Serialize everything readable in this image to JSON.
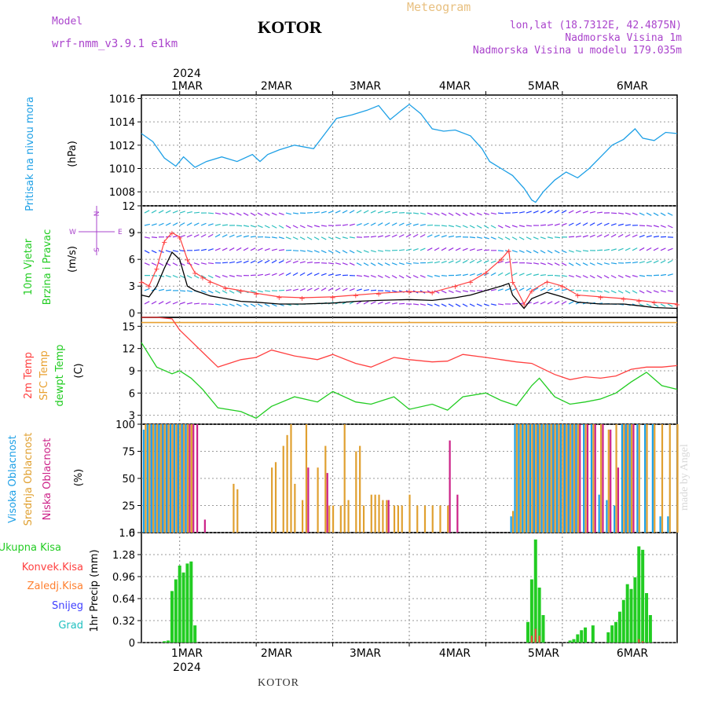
{
  "header": {
    "model_label": "Model",
    "model_name": "wrf-nmm_v3.9.1  e1km",
    "station": "KOTOR",
    "product": "Meteogram",
    "lonlat": "lon,lat (18.7312E, 42.4875N)",
    "elevation": "Nadmorska Visina 1m",
    "model_elevation": "Nadmorska Visina u modelu 179.035m"
  },
  "footer": {
    "station": "KOTOR",
    "credit": "made by Angel"
  },
  "colors": {
    "pressure": "#1ea0e6",
    "wind_speed": "#000000",
    "wind_gust": "#ff4040",
    "temp2m": "#ff4040",
    "sfc_temp": "#e8a030",
    "dewpoint": "#22cc22",
    "cloud_high": "#1ea0e6",
    "cloud_mid": "#e0a030",
    "cloud_low": "#cc2288",
    "precip_total": "#22cc22",
    "precip_conv": "#ff4040",
    "precip_frozen": "#ff8030",
    "snow": "#4040ff",
    "graupel": "#20c0c0",
    "model_text": "#aa44cc"
  },
  "chart_data": [
    {
      "type": "line",
      "id": "pressure",
      "ylabel_left": "Pritisak na nivou mora",
      "unit": "(hPa)",
      "ylim": [
        1006.8,
        1016.3
      ],
      "yticks": [
        "1008",
        "1010",
        "1012",
        "1014",
        "1016"
      ],
      "x": [
        -0.5,
        -0.35,
        -0.2,
        -0.05,
        0.05,
        0.2,
        0.35,
        0.55,
        0.75,
        0.95,
        1.05,
        1.15,
        1.3,
        1.5,
        1.75,
        1.9,
        2.05,
        2.25,
        2.45,
        2.6,
        2.75,
        2.9,
        3.0,
        3.15,
        3.3,
        3.45,
        3.6,
        3.8,
        3.95,
        4.05,
        4.2,
        4.35,
        4.5,
        4.6,
        4.65,
        4.75,
        4.9,
        5.05,
        5.2,
        5.35,
        5.5,
        5.65,
        5.8,
        5.95,
        6.05,
        6.2,
        6.35,
        6.5
      ],
      "series": [
        {
          "values": [
            1013.0,
            1012.3,
            1010.9,
            1010.2,
            1011.0,
            1010.1,
            1010.6,
            1011.0,
            1010.6,
            1011.2,
            1010.6,
            1011.2,
            1011.6,
            1012.0,
            1011.7,
            1013.0,
            1014.3,
            1014.6,
            1015.0,
            1015.4,
            1014.2,
            1015.0,
            1015.5,
            1014.7,
            1013.4,
            1013.2,
            1013.3,
            1012.8,
            1011.7,
            1010.6,
            1010.0,
            1009.4,
            1008.3,
            1007.3,
            1007.1,
            1008.0,
            1009.0,
            1009.7,
            1009.2,
            1010.0,
            1011.0,
            1012.0,
            1012.5,
            1013.4,
            1012.6,
            1012.4,
            1013.1,
            1013.0
          ]
        }
      ]
    },
    {
      "type": "line",
      "id": "wind",
      "ylabel_left": "10m Vjetar",
      "ylabel_left2": "Brzina i Pravac",
      "unit": "(m/s)",
      "ylim": [
        -0.5,
        12
      ],
      "yticks": [
        "0",
        "3",
        "6",
        "9",
        "12"
      ],
      "compass": {
        "n": "N",
        "w": "W",
        "e": "E",
        "s": "S"
      },
      "x": [
        -0.5,
        -0.4,
        -0.3,
        -0.2,
        -0.1,
        0.0,
        0.1,
        0.2,
        0.3,
        0.4,
        0.6,
        0.8,
        1.0,
        1.3,
        1.6,
        2.0,
        2.3,
        2.6,
        3.0,
        3.3,
        3.6,
        3.8,
        4.0,
        4.2,
        4.3,
        4.35,
        4.5,
        4.6,
        4.8,
        5.0,
        5.2,
        5.5,
        5.8,
        6.0,
        6.2,
        6.5
      ],
      "series": [
        {
          "name": "speed",
          "values": [
            2.0,
            1.8,
            3.0,
            5.0,
            6.8,
            6.0,
            3.0,
            2.5,
            2.2,
            1.9,
            1.6,
            1.3,
            1.2,
            1.0,
            1.0,
            1.1,
            1.3,
            1.4,
            1.5,
            1.4,
            1.7,
            2.0,
            2.5,
            3.0,
            3.3,
            2.0,
            0.5,
            1.6,
            2.3,
            1.8,
            1.2,
            1.0,
            1.0,
            0.8,
            0.6,
            0.5
          ]
        },
        {
          "name": "gust",
          "values": [
            3.5,
            3.0,
            5.0,
            8.0,
            9.0,
            8.5,
            6.0,
            4.5,
            4.0,
            3.5,
            2.8,
            2.5,
            2.2,
            1.8,
            1.7,
            1.8,
            2.0,
            2.2,
            2.4,
            2.3,
            3.0,
            3.5,
            4.5,
            6.0,
            7.0,
            3.5,
            1.0,
            2.5,
            3.5,
            3.0,
            2.0,
            1.8,
            1.6,
            1.4,
            1.2,
            1.0
          ]
        }
      ]
    },
    {
      "type": "line",
      "id": "temperature",
      "ylabel_left": "2m Temp",
      "ylabel_left2": "SFC Temp",
      "ylabel_left3": "dewpt Temp",
      "unit": "(C)",
      "ylim": [
        1.8,
        16.2
      ],
      "yticks": [
        "3",
        "6",
        "9",
        "12",
        "15"
      ],
      "x": [
        -0.5,
        -0.3,
        -0.1,
        0.0,
        0.15,
        0.3,
        0.5,
        0.8,
        1.0,
        1.2,
        1.5,
        1.8,
        2.0,
        2.3,
        2.5,
        2.8,
        3.0,
        3.3,
        3.5,
        3.7,
        4.0,
        4.2,
        4.4,
        4.6,
        4.7,
        4.9,
        5.1,
        5.3,
        5.5,
        5.7,
        5.9,
        6.1,
        6.3,
        6.5
      ],
      "series": [
        {
          "name": "temp2m",
          "values": [
            16.2,
            16.2,
            16.0,
            14.5,
            13.0,
            11.5,
            9.5,
            10.5,
            10.8,
            11.8,
            11.0,
            10.5,
            11.2,
            10.0,
            9.5,
            10.8,
            10.5,
            10.2,
            10.3,
            11.2,
            10.8,
            10.5,
            10.2,
            10.0,
            9.5,
            8.5,
            7.8,
            8.2,
            8.0,
            8.3,
            9.2,
            9.5,
            9.5,
            9.7
          ]
        },
        {
          "name": "sfc_temp",
          "values": [
            15.5,
            15.5,
            15.5,
            15.5,
            15.5,
            15.5,
            15.5,
            15.5,
            15.5,
            15.5,
            15.5,
            15.5,
            15.5,
            15.5,
            15.5,
            15.5,
            15.5,
            15.5,
            15.5,
            15.5,
            15.5,
            15.5,
            15.5,
            15.5,
            15.5,
            15.5,
            15.5,
            15.5,
            15.5,
            15.5,
            15.5,
            15.5,
            15.5,
            15.5
          ]
        },
        {
          "name": "dewpoint",
          "values": [
            12.8,
            9.5,
            8.6,
            9.0,
            8.0,
            6.5,
            4.0,
            3.5,
            2.6,
            4.2,
            5.5,
            4.8,
            6.2,
            4.8,
            4.5,
            5.5,
            3.8,
            4.5,
            3.7,
            5.5,
            6.0,
            5.0,
            4.3,
            7.0,
            8.0,
            5.5,
            4.5,
            4.8,
            5.2,
            6.0,
            7.5,
            8.8,
            7.0,
            6.5
          ]
        }
      ]
    },
    {
      "type": "bar",
      "id": "clouds",
      "ylabel_left": "Visoka Oblacnost",
      "ylabel_left2": "Srednja Oblacnost",
      "ylabel_left3": "Niska Oblacnost",
      "unit": "(%)",
      "ylim": [
        0,
        100
      ],
      "yticks": [
        "0",
        "25",
        "50",
        "75",
        "100"
      ],
      "x": [
        -0.45,
        -0.4,
        -0.35,
        -0.3,
        -0.25,
        -0.2,
        -0.15,
        -0.1,
        -0.05,
        0.0,
        0.05,
        0.1,
        0.15,
        0.2,
        0.3,
        0.7,
        0.75,
        0.8,
        0.85,
        0.9,
        1.2,
        1.25,
        1.3,
        1.35,
        1.4,
        1.45,
        1.5,
        1.6,
        1.65,
        1.7,
        1.8,
        1.9,
        1.95,
        2.0,
        2.1,
        2.15,
        2.2,
        2.3,
        2.35,
        2.4,
        2.5,
        2.55,
        2.6,
        2.65,
        2.7,
        2.8,
        2.85,
        2.9,
        3.0,
        3.1,
        3.2,
        3.3,
        3.4,
        3.5,
        3.6,
        3.8,
        4.2,
        4.3,
        4.35,
        4.4,
        4.45,
        4.5,
        4.55,
        4.6,
        4.65,
        4.7,
        4.75,
        4.8,
        4.85,
        4.9,
        4.95,
        5.0,
        5.05,
        5.1,
        5.15,
        5.2,
        5.3,
        5.4,
        5.5,
        5.6,
        5.7,
        5.8,
        5.85,
        5.9,
        6.0,
        6.1,
        6.2,
        6.3,
        6.4,
        6.5
      ],
      "series": [
        {
          "name": "high",
          "values": [
            95,
            100,
            100,
            100,
            100,
            100,
            100,
            100,
            100,
            100,
            100,
            100,
            0,
            0,
            0,
            0,
            0,
            0,
            0,
            0,
            0,
            0,
            0,
            0,
            0,
            0,
            0,
            0,
            0,
            0,
            0,
            0,
            0,
            0,
            0,
            0,
            0,
            0,
            0,
            0,
            0,
            0,
            0,
            0,
            0,
            0,
            0,
            0,
            0,
            0,
            0,
            0,
            0,
            0,
            0,
            0,
            0,
            0,
            15,
            100,
            100,
            100,
            100,
            100,
            100,
            100,
            100,
            100,
            100,
            100,
            100,
            100,
            100,
            100,
            100,
            100,
            100,
            100,
            35,
            30,
            25,
            100,
            100,
            100,
            100,
            100,
            100,
            15,
            15,
            0
          ]
        },
        {
          "name": "mid",
          "values": [
            100,
            100,
            100,
            100,
            100,
            100,
            100,
            100,
            100,
            100,
            100,
            100,
            100,
            0,
            0,
            45,
            40,
            0,
            0,
            0,
            60,
            65,
            0,
            80,
            90,
            100,
            45,
            30,
            100,
            0,
            60,
            80,
            25,
            25,
            25,
            100,
            30,
            75,
            80,
            25,
            35,
            35,
            35,
            30,
            30,
            25,
            25,
            25,
            35,
            25,
            25,
            25,
            25,
            25,
            0,
            0,
            0,
            0,
            20,
            100,
            100,
            100,
            100,
            100,
            100,
            100,
            100,
            100,
            100,
            100,
            100,
            100,
            100,
            100,
            100,
            100,
            100,
            100,
            100,
            95,
            100,
            100,
            100,
            100,
            100,
            100,
            100,
            100,
            100,
            100
          ]
        },
        {
          "name": "low",
          "values": [
            0,
            100,
            100,
            100,
            100,
            100,
            100,
            100,
            100,
            100,
            100,
            100,
            100,
            100,
            12,
            0,
            0,
            0,
            0,
            0,
            0,
            0,
            0,
            0,
            0,
            0,
            0,
            0,
            60,
            0,
            0,
            55,
            0,
            0,
            0,
            0,
            0,
            0,
            0,
            0,
            0,
            0,
            0,
            0,
            30,
            0,
            0,
            0,
            0,
            0,
            0,
            0,
            0,
            85,
            35,
            0,
            0,
            0,
            0,
            0,
            0,
            0,
            100,
            100,
            100,
            100,
            100,
            100,
            100,
            100,
            100,
            100,
            100,
            100,
            100,
            100,
            100,
            100,
            100,
            95,
            60,
            100,
            100,
            100,
            0,
            0,
            0,
            0,
            0,
            0
          ]
        }
      ]
    },
    {
      "type": "bar",
      "id": "precip",
      "legend": [
        "Ukupna Kisa",
        "Konvek.Kisa",
        "Zaledj.Kisa",
        "Snijeg",
        "Grad"
      ],
      "unit": "1hr Precip (mm)",
      "ylim": [
        0,
        1.6
      ],
      "yticks": [
        "0",
        "0.32",
        "0.64",
        "0.96",
        "1.28",
        "1.6"
      ],
      "x": [
        -0.2,
        -0.15,
        -0.1,
        -0.05,
        0.0,
        0.05,
        0.1,
        0.15,
        0.2,
        4.55,
        4.6,
        4.65,
        4.7,
        4.75,
        5.1,
        5.15,
        5.2,
        5.25,
        5.3,
        5.4,
        5.6,
        5.65,
        5.7,
        5.75,
        5.8,
        5.85,
        5.9,
        5.95,
        6.0,
        6.05,
        6.1,
        6.15
      ],
      "series": [
        {
          "name": "total",
          "values": [
            0.02,
            0.03,
            0.75,
            0.92,
            1.12,
            1.02,
            1.15,
            1.18,
            0.25,
            0.3,
            0.92,
            1.5,
            0.8,
            0.4,
            0.03,
            0.05,
            0.12,
            0.18,
            0.22,
            0.25,
            0.15,
            0.25,
            0.3,
            0.45,
            0.62,
            0.85,
            0.78,
            0.95,
            1.4,
            1.35,
            0.72,
            0.4
          ]
        },
        {
          "name": "convective",
          "values": [
            0,
            0,
            0,
            0,
            0,
            0,
            0,
            0,
            0,
            0,
            0.1,
            0.2,
            0.1,
            0,
            0,
            0,
            0,
            0,
            0,
            0,
            0,
            0,
            0,
            0,
            0,
            0,
            0,
            0,
            0.05,
            0.02,
            0,
            0
          ]
        }
      ]
    }
  ],
  "axis": {
    "year": "2024",
    "x_domain": [
      -0.5,
      6.5
    ],
    "days": [
      "1MAR",
      "2MAR",
      "3MAR",
      "4MAR",
      "5MAR",
      "6MAR"
    ]
  }
}
